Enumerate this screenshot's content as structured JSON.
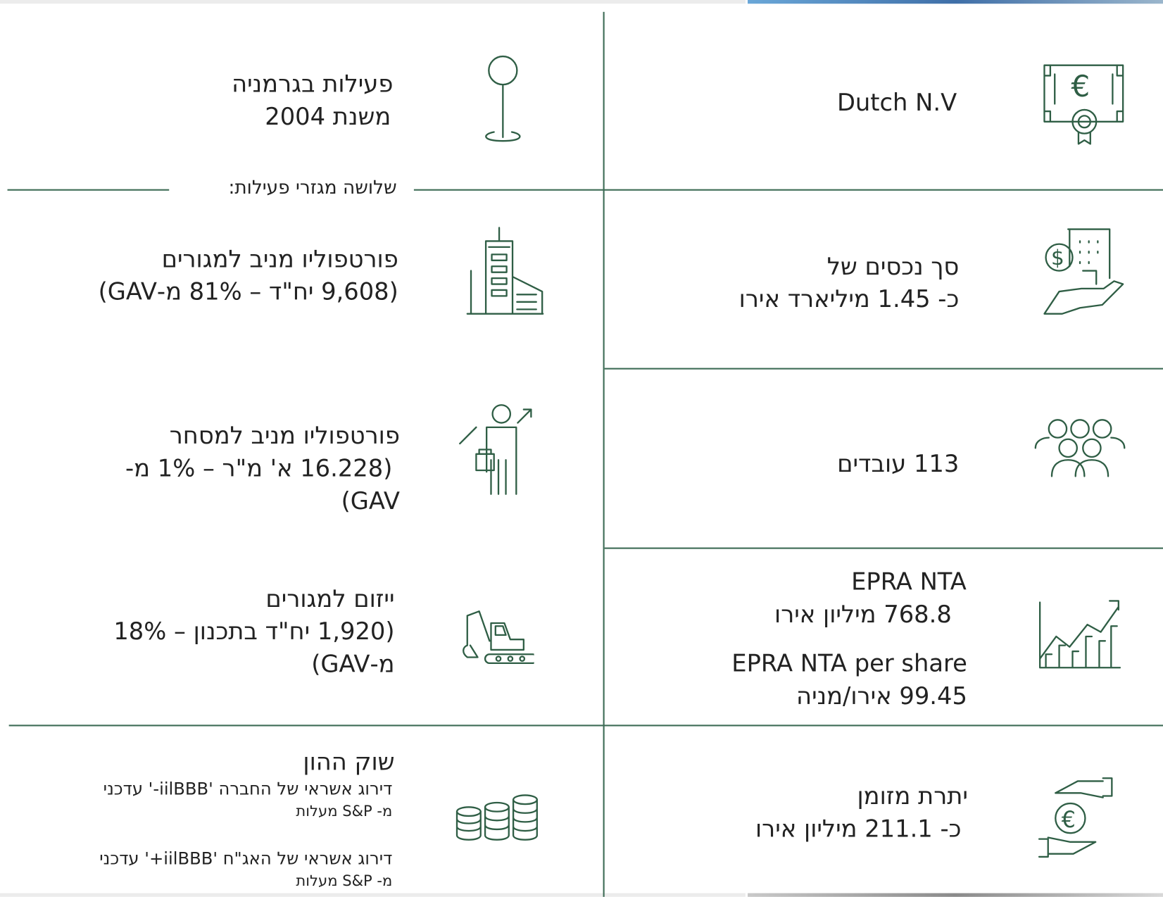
{
  "left": [
    {
      "lines": [
        "פעילות בגרמניה",
        "משנת 2004"
      ]
    },
    {
      "lines": [
        "פורטפוליו מניב למגורים",
        "(9,608 יח\"ד –  81% מ-GAV)"
      ]
    },
    {
      "lines": [
        "פורטפוליו מניב למסחר",
        "(16.228 א' מ\"ר – 1% מ-",
        "GAV)"
      ]
    },
    {
      "lines": [
        "ייזום למגורים",
        "(1,920 יח\"ד בתכנון – 18%",
        "מ-GAV)"
      ]
    },
    {
      "lines": [
        "שוק ההון",
        "דירוג אשראי של החברה 'iilBBB-' עדכני",
        "מ- S&P מעלות",
        "דירוג אשראי של האג\"ח 'iilBBB+' עדכני",
        "מ- S&P מעלות"
      ]
    }
  ],
  "divider_label": "שלושה מגזרי פעילות:",
  "right": [
    {
      "lines": [
        "Dutch N.V"
      ]
    },
    {
      "lines": [
        "סך נכסים של",
        "כ- 1.45 מיליארד אירו"
      ]
    },
    {
      "lines": [
        "113 עובדים"
      ]
    },
    {
      "lines": [
        "EPRA NTA",
        "768.8 מיליון אירו",
        "EPRA NTA per share",
        "99.45 אירו/מניה"
      ]
    },
    {
      "lines": [
        "יתרת מזומן",
        "כ- 211.1 מיליון אירו"
      ]
    }
  ]
}
